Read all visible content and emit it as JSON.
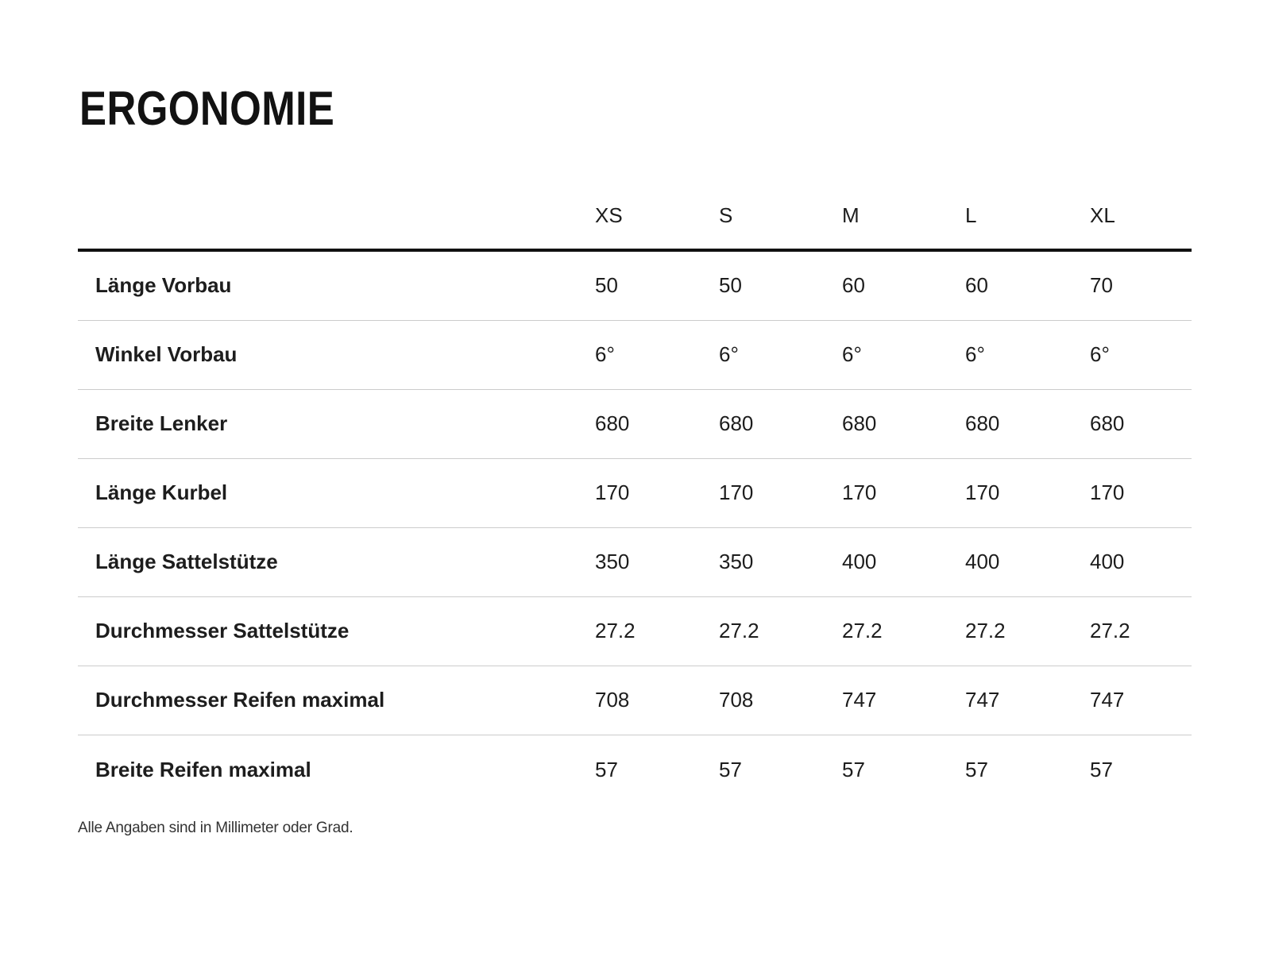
{
  "page": {
    "title": "ERGONOMIE",
    "footnote": "Alle Angaben sind in Millimeter oder Grad."
  },
  "chart_data": {
    "type": "table",
    "title": "ERGONOMIE",
    "columns": [
      "XS",
      "S",
      "M",
      "L",
      "XL"
    ],
    "rows": [
      {
        "label": "Länge Vorbau",
        "values": [
          "50",
          "50",
          "60",
          "60",
          "70"
        ]
      },
      {
        "label": "Winkel Vorbau",
        "values": [
          "6°",
          "6°",
          "6°",
          "6°",
          "6°"
        ]
      },
      {
        "label": "Breite Lenker",
        "values": [
          "680",
          "680",
          "680",
          "680",
          "680"
        ]
      },
      {
        "label": "Länge Kurbel",
        "values": [
          "170",
          "170",
          "170",
          "170",
          "170"
        ]
      },
      {
        "label": "Länge Sattelstütze",
        "values": [
          "350",
          "350",
          "400",
          "400",
          "400"
        ]
      },
      {
        "label": "Durchmesser Sattelstütze",
        "values": [
          "27.2",
          "27.2",
          "27.2",
          "27.2",
          "27.2"
        ]
      },
      {
        "label": "Durchmesser Reifen maximal",
        "values": [
          "708",
          "708",
          "747",
          "747",
          "747"
        ]
      },
      {
        "label": "Breite Reifen maximal",
        "values": [
          "57",
          "57",
          "57",
          "57",
          "57"
        ]
      }
    ],
    "footnote": "Alle Angaben sind in Millimeter oder Grad.",
    "layout": {
      "grid": "horizontal-dividers-only",
      "header_rule": "thick-black-below-column-headers",
      "value_alignment": "left"
    }
  },
  "colors": {
    "text": "#1d1d1d",
    "divider": "#cccccc",
    "header_rule": "#111111",
    "background": "#ffffff",
    "footnote_color": "#333333"
  }
}
